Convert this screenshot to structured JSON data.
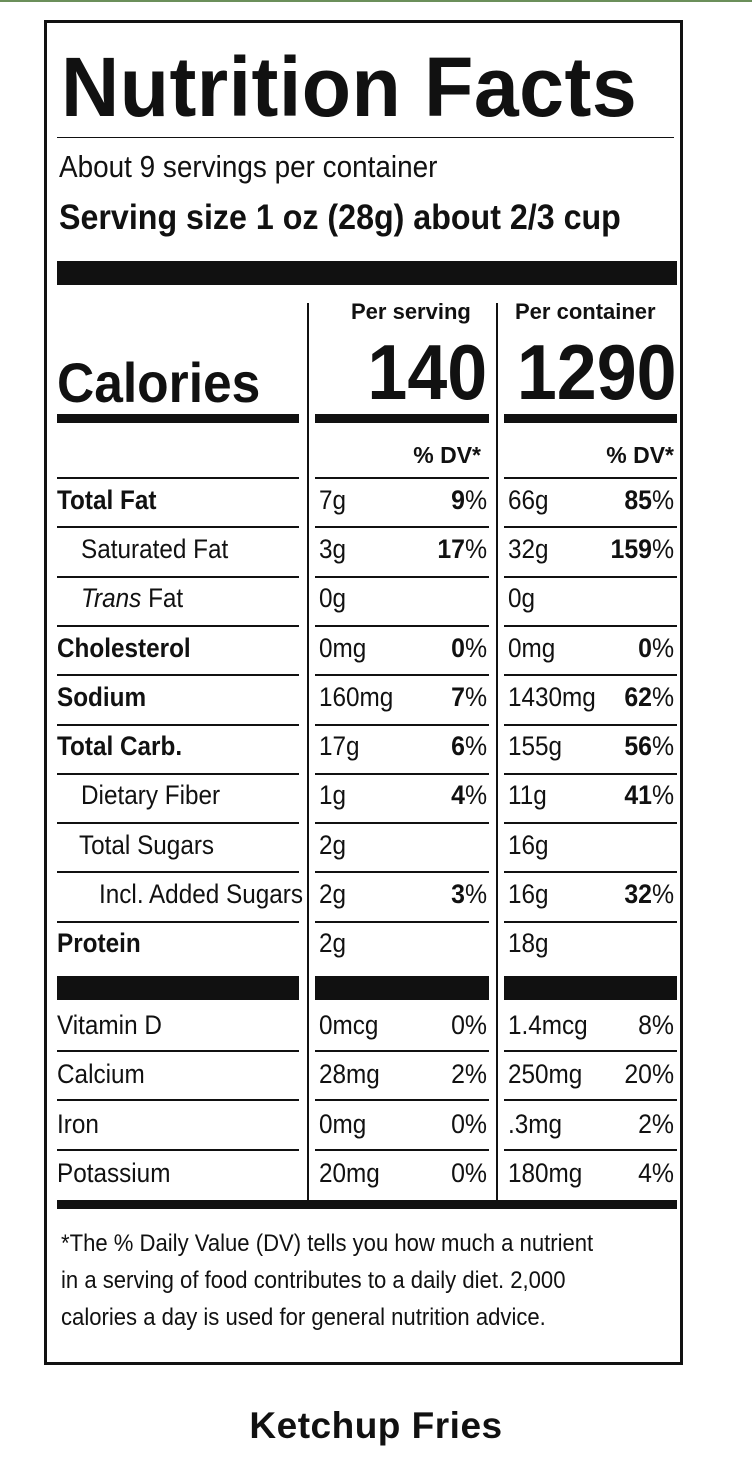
{
  "label": {
    "title": "Nutrition Facts",
    "servings_per_container": "About 9 servings per container",
    "serving_size": "Serving size 1 oz (28g) about 2/3 cup",
    "per_serving_header": "Per serving",
    "per_container_header": "Per container",
    "calories_label": "Calories",
    "calories_per_serving": "140",
    "calories_per_container": "1290",
    "dv_header": "% DV*",
    "nutrients": [
      {
        "name": "Total Fat",
        "serving_amount": "7g",
        "serving_dv": "9",
        "container_amount": "66g",
        "container_dv": "85"
      },
      {
        "name": "Saturated Fat",
        "serving_amount": "3g",
        "serving_dv": "17",
        "container_amount": "32g",
        "container_dv": "159"
      },
      {
        "name_italic": "Trans",
        "name_rest": " Fat",
        "serving_amount": "0g",
        "serving_dv": "",
        "container_amount": "0g",
        "container_dv": ""
      },
      {
        "name": "Cholesterol",
        "serving_amount": "0mg",
        "serving_dv": "0",
        "container_amount": "0mg",
        "container_dv": "0"
      },
      {
        "name": "Sodium",
        "serving_amount": "160mg",
        "serving_dv": "7",
        "container_amount": "1430mg",
        "container_dv": "62"
      },
      {
        "name": "Total Carb.",
        "serving_amount": "17g",
        "serving_dv": "6",
        "container_amount": "155g",
        "container_dv": "56"
      },
      {
        "name": "Dietary Fiber",
        "serving_amount": "1g",
        "serving_dv": "4",
        "container_amount": "11g",
        "container_dv": "41"
      },
      {
        "name": "Total Sugars",
        "serving_amount": "2g",
        "serving_dv": "",
        "container_amount": "16g",
        "container_dv": ""
      },
      {
        "name": "Incl. Added Sugars",
        "serving_amount": "2g",
        "serving_dv": "3",
        "container_amount": "16g",
        "container_dv": "32"
      },
      {
        "name": "Protein",
        "serving_amount": "2g",
        "serving_dv": "",
        "container_amount": "18g",
        "container_dv": ""
      }
    ],
    "vitamins": [
      {
        "name": "Vitamin D",
        "serving_amount": "0mcg",
        "serving_dv": "0%",
        "container_amount": "1.4mcg",
        "container_dv": "8%"
      },
      {
        "name": "Calcium",
        "serving_amount": "28mg",
        "serving_dv": "2%",
        "container_amount": "250mg",
        "container_dv": "20%"
      },
      {
        "name": "Iron",
        "serving_amount": "0mg",
        "serving_dv": "0%",
        "container_amount": ".3mg",
        "container_dv": "2%"
      },
      {
        "name": "Potassium",
        "serving_amount": "20mg",
        "serving_dv": "0%",
        "container_amount": "180mg",
        "container_dv": "4%"
      }
    ],
    "percent_sign": "%",
    "footnote": "*The % Daily Value (DV) tells you how much a nutrient in a serving of food contributes to a daily diet. 2,000 calories a day is used for general nutrition advice."
  },
  "product_name": "Ketchup Fries"
}
